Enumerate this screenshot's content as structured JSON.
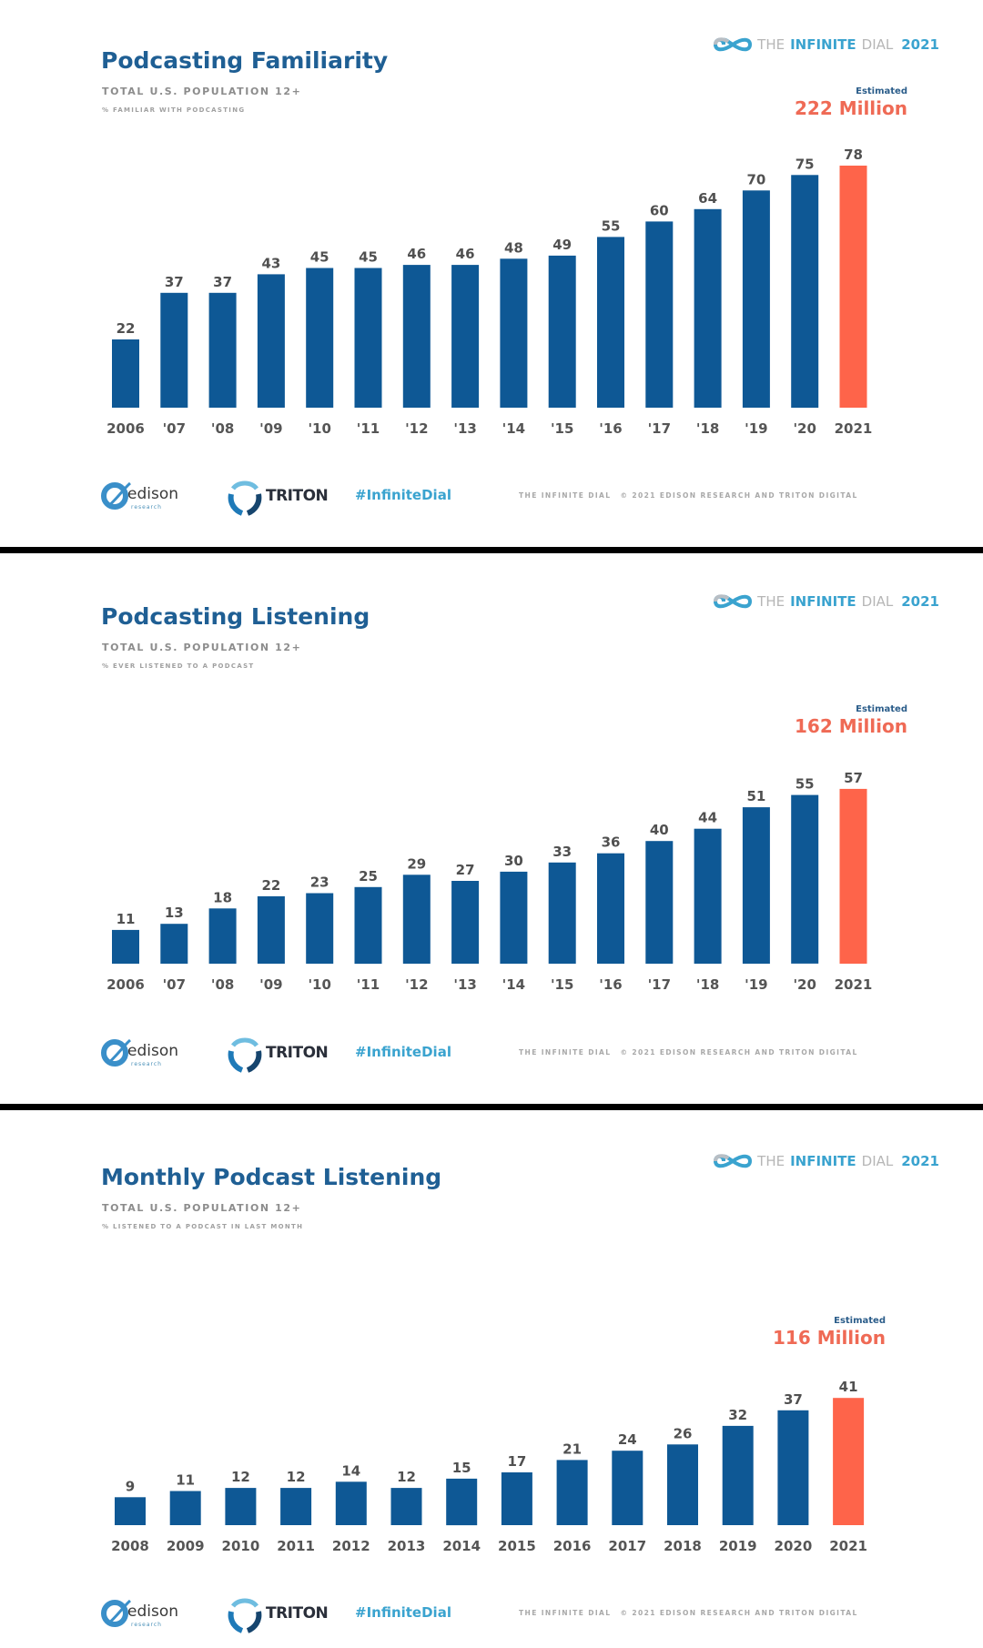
{
  "brand": {
    "the": "THE",
    "infinite": "INFINITE",
    "dial": "DIAL",
    "year": "2021"
  },
  "footer": {
    "edison": "edison",
    "edison_sub": "research",
    "triton": "TRITON",
    "hashtag": "#InfiniteDial",
    "copyright_left": "THE INFINITE DIAL",
    "copyright_right": "© 2021 EDISON RESEARCH AND TRITON DIGITAL"
  },
  "colors": {
    "bar": "#0e5895",
    "highlight": "#fe644a",
    "value_label": "#505050",
    "tick_label": "#555555"
  },
  "chart_data": [
    {
      "type": "bar",
      "title": "Podcasting Familiarity",
      "subtitle": "TOTAL U.S. POPULATION 12+",
      "metric": "% FAMILIAR WITH PODCASTING",
      "estimate_label": "Estimated",
      "estimate_value": "222 Million",
      "categories": [
        "2006",
        "'07",
        "'08",
        "'09",
        "'10",
        "'11",
        "'12",
        "'13",
        "'14",
        "'15",
        "'16",
        "'17",
        "'18",
        "'19",
        "'20",
        "2021"
      ],
      "values": [
        22,
        37,
        37,
        43,
        45,
        45,
        46,
        46,
        48,
        49,
        55,
        60,
        64,
        70,
        75,
        78
      ],
      "highlight_index": 15,
      "xlabel": "",
      "ylabel": "",
      "ylim": [
        0,
        100
      ],
      "grid": false
    },
    {
      "type": "bar",
      "title": "Podcasting Listening",
      "subtitle": "TOTAL U.S. POPULATION 12+",
      "metric": "% EVER LISTENED TO A PODCAST",
      "estimate_label": "Estimated",
      "estimate_value": "162 Million",
      "categories": [
        "2006",
        "'07",
        "'08",
        "'09",
        "'10",
        "'11",
        "'12",
        "'13",
        "'14",
        "'15",
        "'16",
        "'17",
        "'18",
        "'19",
        "'20",
        "2021"
      ],
      "values": [
        11,
        13,
        18,
        22,
        23,
        25,
        29,
        27,
        30,
        33,
        36,
        40,
        44,
        51,
        55,
        57
      ],
      "highlight_index": 15,
      "xlabel": "",
      "ylabel": "",
      "ylim": [
        0,
        100
      ],
      "grid": false
    },
    {
      "type": "bar",
      "title": "Monthly Podcast Listening",
      "subtitle": "TOTAL U.S. POPULATION 12+",
      "metric": "% LISTENED TO A PODCAST IN LAST MONTH",
      "estimate_label": "Estimated",
      "estimate_value": "116 Million",
      "categories": [
        "2008",
        "2009",
        "2010",
        "2011",
        "2012",
        "2013",
        "2014",
        "2015",
        "2016",
        "2017",
        "2018",
        "2019",
        "2020",
        "2021"
      ],
      "values": [
        9,
        11,
        12,
        12,
        14,
        12,
        15,
        17,
        21,
        24,
        26,
        32,
        37,
        41
      ],
      "highlight_index": 13,
      "xlabel": "",
      "ylabel": "",
      "ylim": [
        0,
        100
      ],
      "grid": false
    }
  ]
}
